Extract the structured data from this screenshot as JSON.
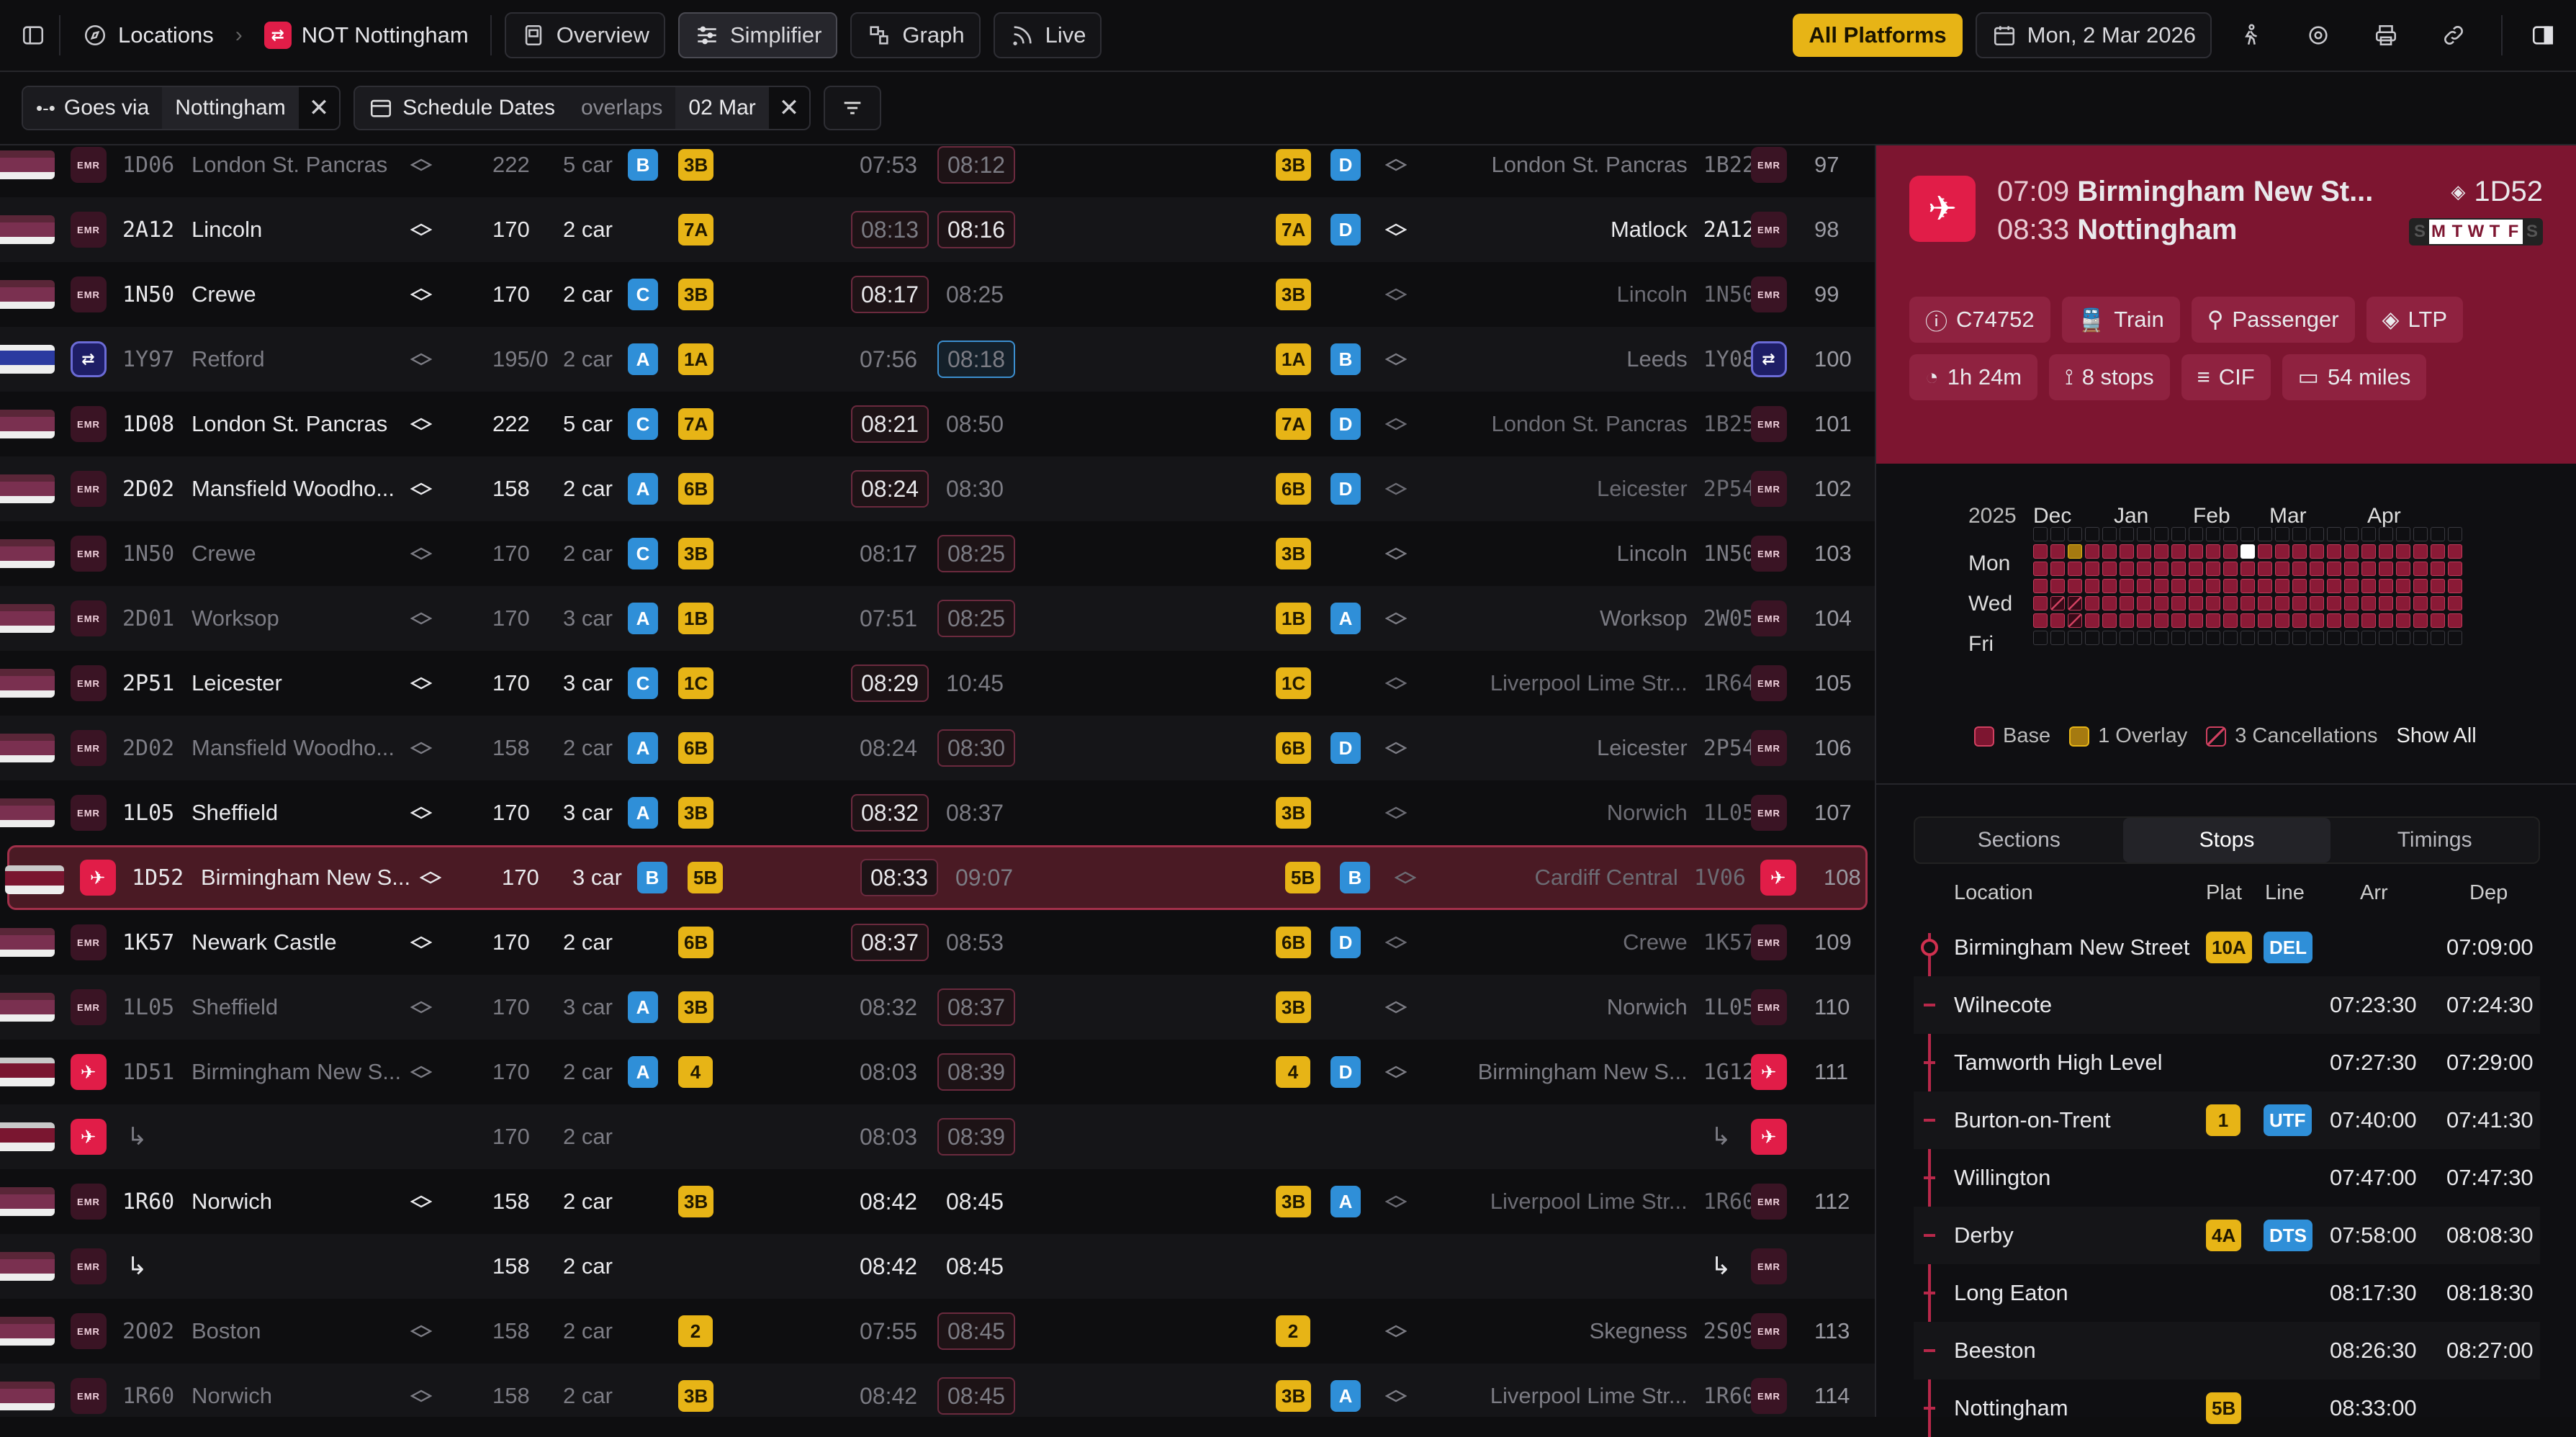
{
  "topbar": {
    "locations_label": "Locations",
    "context_label": "NOT Nottingham",
    "views": [
      {
        "label": "Overview",
        "icon": "overview-icon",
        "active": false
      },
      {
        "label": "Simplifier",
        "icon": "simplifier-icon",
        "active": true
      },
      {
        "label": "Graph",
        "icon": "graph-icon",
        "active": false
      },
      {
        "label": "Live",
        "icon": "live-icon",
        "active": false
      }
    ],
    "platforms_label": "All Platforms",
    "date_label": "Mon, 2 Mar 2026"
  },
  "filters": {
    "goes_via_label": "Goes via",
    "goes_via_value": "Nottingham",
    "schedule_label": "Schedule Dates",
    "schedule_op": "overlaps",
    "schedule_value": "02 Mar"
  },
  "rows": [
    {
      "op": "emr",
      "hc": "1D06",
      "origin": "London St. Pancras",
      "unit": "222",
      "cars": "5 car",
      "pos": "B",
      "plat_in": "3B",
      "arr": "07:53",
      "dep": "08:12",
      "plat_out": "3B",
      "line": "D",
      "dest": "London St. Pancras",
      "hc_out": "1B22",
      "op_out": "emr",
      "num": "97",
      "dim": true,
      "arr_box": false,
      "dep_box": true
    },
    {
      "op": "emr",
      "hc": "2A12",
      "origin": "Lincoln",
      "unit": "170",
      "cars": "2 car",
      "pos": "",
      "plat_in": "7A",
      "arr": "08:13",
      "dep": "08:16",
      "plat_out": "7A",
      "line": "D",
      "dest": "Matlock",
      "hc_out": "2A12",
      "op_out": "emr",
      "num": "98",
      "dim": false,
      "arr_box": true,
      "dep_box": true
    },
    {
      "op": "emr",
      "hc": "1N50",
      "origin": "Crewe",
      "unit": "170",
      "cars": "2 car",
      "pos": "C",
      "plat_in": "3B",
      "arr": "08:17",
      "dep": "08:25",
      "plat_out": "3B",
      "line": "",
      "dest": "Lincoln",
      "hc_out": "1N50",
      "op_out": "emr",
      "num": "99",
      "dim": false,
      "dest_dim": true,
      "arr_box": true,
      "dep_box": false
    },
    {
      "op": "nr",
      "hc": "1Y97",
      "origin": "Retford",
      "unit": "195/0",
      "cars": "2 car",
      "pos": "A",
      "plat_in": "1A",
      "arr": "07:56",
      "dep": "08:18",
      "plat_out": "1A",
      "line": "B",
      "dest": "Leeds",
      "hc_out": "1Y08",
      "op_out": "nr",
      "num": "100",
      "dim": true,
      "arr_box": false,
      "dep_box": true,
      "blue": true
    },
    {
      "op": "emr",
      "hc": "1D08",
      "origin": "London St. Pancras",
      "unit": "222",
      "cars": "5 car",
      "pos": "C",
      "plat_in": "7A",
      "arr": "08:21",
      "dep": "08:50",
      "plat_out": "7A",
      "line": "D",
      "dest": "London St. Pancras",
      "hc_out": "1B25",
      "op_out": "emr",
      "num": "101",
      "dim": false,
      "dest_dim": true,
      "arr_box": true,
      "dep_box": false
    },
    {
      "op": "emr",
      "hc": "2D02",
      "origin": "Mansfield Woodho...",
      "unit": "158",
      "cars": "2 car",
      "pos": "A",
      "plat_in": "6B",
      "arr": "08:24",
      "dep": "08:30",
      "plat_out": "6B",
      "line": "D",
      "dest": "Leicester",
      "hc_out": "2P54",
      "op_out": "emr",
      "num": "102",
      "dim": false,
      "dest_dim": true,
      "arr_box": true,
      "dep_box": false
    },
    {
      "op": "emr",
      "hc": "1N50",
      "origin": "Crewe",
      "unit": "170",
      "cars": "2 car",
      "pos": "C",
      "plat_in": "3B",
      "arr": "08:17",
      "dep": "08:25",
      "plat_out": "3B",
      "line": "",
      "dest": "Lincoln",
      "hc_out": "1N50",
      "op_out": "emr",
      "num": "103",
      "dim": true,
      "arr_box": false,
      "dep_box": true
    },
    {
      "op": "emr",
      "hc": "2D01",
      "origin": "Worksop",
      "unit": "170",
      "cars": "3 car",
      "pos": "A",
      "plat_in": "1B",
      "arr": "07:51",
      "dep": "08:25",
      "plat_out": "1B",
      "line": "A",
      "dest": "Worksop",
      "hc_out": "2W05",
      "op_out": "emr",
      "num": "104",
      "dim": true,
      "arr_box": false,
      "dep_box": true
    },
    {
      "op": "emr",
      "hc": "2P51",
      "origin": "Leicester",
      "unit": "170",
      "cars": "3 car",
      "pos": "C",
      "plat_in": "1C",
      "arr": "08:29",
      "dep": "10:45",
      "plat_out": "1C",
      "line": "",
      "dest": "Liverpool Lime Str...",
      "hc_out": "1R64",
      "op_out": "emr",
      "num": "105",
      "dim": false,
      "dest_dim": true,
      "arr_box": true,
      "dep_box": false
    },
    {
      "op": "emr",
      "hc": "2D02",
      "origin": "Mansfield Woodho...",
      "unit": "158",
      "cars": "2 car",
      "pos": "A",
      "plat_in": "6B",
      "arr": "08:24",
      "dep": "08:30",
      "plat_out": "6B",
      "line": "D",
      "dest": "Leicester",
      "hc_out": "2P54",
      "op_out": "emr",
      "num": "106",
      "dim": true,
      "arr_box": false,
      "dep_box": true
    },
    {
      "op": "emr",
      "hc": "1L05",
      "origin": "Sheffield",
      "unit": "170",
      "cars": "3 car",
      "pos": "A",
      "plat_in": "3B",
      "arr": "08:32",
      "dep": "08:37",
      "plat_out": "3B",
      "line": "",
      "dest": "Norwich",
      "hc_out": "1L05",
      "op_out": "emr",
      "num": "107",
      "dim": false,
      "dest_dim": true,
      "arr_box": true,
      "dep_box": false
    },
    {
      "op": "xc",
      "hc": "1D52",
      "origin": "Birmingham New S...",
      "unit": "170",
      "cars": "3 car",
      "pos": "B",
      "plat_in": "5B",
      "arr": "08:33",
      "dep": "09:07",
      "plat_out": "5B",
      "line": "B",
      "dest": "Cardiff Central",
      "hc_out": "1V06",
      "op_out": "xc",
      "num": "108",
      "dim": false,
      "dest_dim": true,
      "arr_box": true,
      "dep_box": false,
      "selected": true
    },
    {
      "op": "emr",
      "hc": "1K57",
      "origin": "Newark Castle",
      "unit": "170",
      "cars": "2 car",
      "pos": "",
      "plat_in": "6B",
      "arr": "08:37",
      "dep": "08:53",
      "plat_out": "6B",
      "line": "D",
      "dest": "Crewe",
      "hc_out": "1K57",
      "op_out": "emr",
      "num": "109",
      "dim": false,
      "dest_dim": true,
      "arr_box": true,
      "dep_box": false
    },
    {
      "op": "emr",
      "hc": "1L05",
      "origin": "Sheffield",
      "unit": "170",
      "cars": "3 car",
      "pos": "A",
      "plat_in": "3B",
      "arr": "08:32",
      "dep": "08:37",
      "plat_out": "3B",
      "line": "",
      "dest": "Norwich",
      "hc_out": "1L05",
      "op_out": "emr",
      "num": "110",
      "dim": true,
      "arr_box": false,
      "dep_box": true
    },
    {
      "op": "xc",
      "hc": "1D51",
      "origin": "Birmingham New S...",
      "unit": "170",
      "cars": "2 car",
      "pos": "A",
      "plat_in": "4",
      "arr": "08:03",
      "dep": "08:39",
      "plat_out": "4",
      "line": "D",
      "dest": "Birmingham New S...",
      "hc_out": "1G12",
      "op_out": "xc",
      "num": "111",
      "dim": true,
      "arr_box": false,
      "dep_box": true
    },
    {
      "op": "xc",
      "hc": "",
      "origin": "",
      "unit": "170",
      "cars": "2 car",
      "pos": "",
      "plat_in": "",
      "arr": "08:03",
      "dep": "08:39",
      "plat_out": "",
      "line": "",
      "dest": "",
      "hc_out": "",
      "op_out": "xc",
      "num": "",
      "dim": true,
      "arr_box": false,
      "dep_box": true,
      "sub": true
    },
    {
      "op": "emr",
      "hc": "1R60",
      "origin": "Norwich",
      "unit": "158",
      "cars": "2 car",
      "pos": "",
      "plat_in": "3B",
      "arr": "08:42",
      "dep": "08:45",
      "plat_out": "3B",
      "line": "A",
      "dest": "Liverpool Lime Str...",
      "hc_out": "1R60",
      "op_out": "emr",
      "num": "112",
      "dim": false,
      "dest_dim": true,
      "arr_box": false,
      "dep_box": false
    },
    {
      "op": "emr",
      "hc": "",
      "origin": "",
      "unit": "158",
      "cars": "2 car",
      "pos": "",
      "plat_in": "",
      "arr": "08:42",
      "dep": "08:45",
      "plat_out": "",
      "line": "",
      "dest": "",
      "hc_out": "",
      "op_out": "emr",
      "num": "",
      "dim": false,
      "arr_box": false,
      "dep_box": false,
      "sub": true
    },
    {
      "op": "emr",
      "hc": "2O02",
      "origin": "Boston",
      "unit": "158",
      "cars": "2 car",
      "pos": "",
      "plat_in": "2",
      "arr": "07:55",
      "dep": "08:45",
      "plat_out": "2",
      "line": "",
      "dest": "Skegness",
      "hc_out": "2S09",
      "op_out": "emr",
      "num": "113",
      "dim": true,
      "arr_box": false,
      "dep_box": true
    },
    {
      "op": "emr",
      "hc": "1R60",
      "origin": "Norwich",
      "unit": "158",
      "cars": "2 car",
      "pos": "",
      "plat_in": "3B",
      "arr": "08:42",
      "dep": "08:45",
      "plat_out": "3B",
      "line": "A",
      "dest": "Liverpool Lime Str...",
      "hc_out": "1R60",
      "op_out": "emr",
      "num": "114",
      "dim": true,
      "arr_box": false,
      "dep_box": true
    }
  ],
  "panel": {
    "dep_time": "07:09",
    "origin": "Birmingham New St...",
    "arr_time": "08:33",
    "dest": "Nottingham",
    "headcode": "1D52",
    "days": [
      "S",
      "M",
      "T",
      "W",
      "T",
      "F",
      "S"
    ],
    "days_on": [
      false,
      true,
      true,
      true,
      true,
      true,
      false
    ],
    "chips": [
      {
        "icon": "id-icon",
        "label": "C74752"
      },
      {
        "icon": "train-icon",
        "label": "Train"
      },
      {
        "icon": "passenger-icon",
        "label": "Passenger"
      },
      {
        "icon": "ltp-icon",
        "label": "LTP"
      },
      {
        "icon": "clock-icon",
        "label": "1h 24m"
      },
      {
        "icon": "stops-icon",
        "label": "8 stops"
      },
      {
        "icon": "cif-icon",
        "label": "CIF"
      },
      {
        "icon": "ruler-icon",
        "label": "54 miles"
      }
    ],
    "calendar": {
      "year": "2025",
      "months": [
        "Dec",
        "Jan",
        "Feb",
        "Mar",
        "Apr"
      ],
      "days": [
        "Mon",
        "Wed",
        "Fri"
      ],
      "legend_base": "Base",
      "legend_overlay": "1 Overlay",
      "legend_cancel": "3 Cancellations",
      "show_all": "Show All"
    },
    "tabs": [
      "Sections",
      "Stops",
      "Timings"
    ],
    "stop_headers": {
      "location": "Location",
      "plat": "Plat",
      "line": "Line",
      "arr": "Arr",
      "dep": "Dep"
    },
    "stops": [
      {
        "name": "Birmingham New Street",
        "plat": "10A",
        "line": "DEL",
        "arr": "",
        "dep": "07:09:00"
      },
      {
        "name": "Wilnecote",
        "plat": "",
        "line": "",
        "arr": "07:23:30",
        "dep": "07:24:30"
      },
      {
        "name": "Tamworth High Level",
        "plat": "",
        "line": "",
        "arr": "07:27:30",
        "dep": "07:29:00"
      },
      {
        "name": "Burton-on-Trent",
        "plat": "1",
        "line": "UTF",
        "arr": "07:40:00",
        "dep": "07:41:30"
      },
      {
        "name": "Willington",
        "plat": "",
        "line": "",
        "arr": "07:47:00",
        "dep": "07:47:30"
      },
      {
        "name": "Derby",
        "plat": "4A",
        "line": "DTS",
        "arr": "07:58:00",
        "dep": "08:08:30"
      },
      {
        "name": "Long Eaton",
        "plat": "",
        "line": "",
        "arr": "08:17:30",
        "dep": "08:18:30"
      },
      {
        "name": "Beeston",
        "plat": "",
        "line": "",
        "arr": "08:26:30",
        "dep": "08:27:00"
      },
      {
        "name": "Nottingham",
        "plat": "5B",
        "line": "",
        "arr": "08:33:00",
        "dep": ""
      }
    ]
  },
  "colors": {
    "accent": "#e7b416",
    "brand": "#7d1530",
    "line": "#2f8fd8",
    "xc": "#e11d48"
  }
}
